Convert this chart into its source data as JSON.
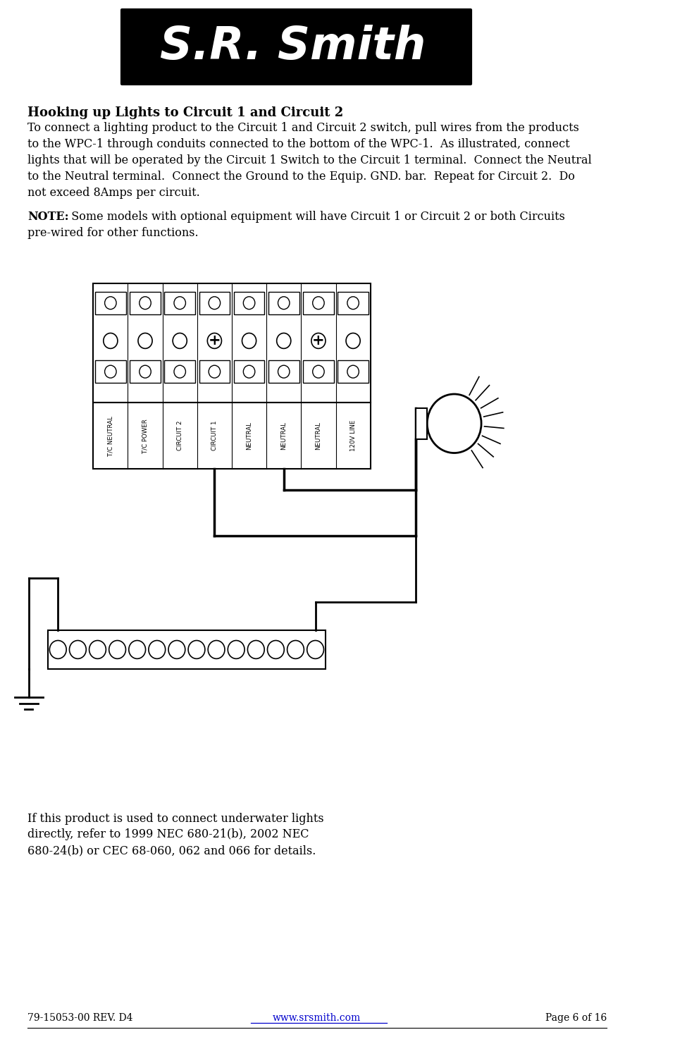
{
  "page_width": 9.75,
  "page_height": 14.71,
  "background_color": "#ffffff",
  "footer_left": "79-15053-00 REV. D4",
  "footer_center": "www.srsmith.com",
  "footer_right": "Page 6 of 16",
  "heading": "Hooking up Lights to Circuit 1 and Circuit 2",
  "para1_lines": [
    "To connect a lighting product to the Circuit 1 and Circuit 2 switch, pull wires from the products",
    "to the WPC-1 through conduits connected to the bottom of the WPC-1.  As illustrated, connect",
    "lights that will be operated by the Circuit 1 Switch to the Circuit 1 terminal.  Connect the Neutral",
    "to the Neutral terminal.  Connect the Ground to the Equip. GND. bar.  Repeat for Circuit 2.  Do",
    "not exceed 8Amps per circuit."
  ],
  "note_bold": "NOTE:",
  "note_line1": "  Some models with optional equipment will have Circuit 1 or Circuit 2 or both Circuits",
  "note_line2": "pre-wired for other functions.",
  "footnote_lines": [
    "If this product is used to connect underwater lights",
    "directly, refer to 1999 NEC 680-21(b), 2002 NEC",
    "680-24(b) or CEC 68-060, 062 and 066 for details."
  ],
  "terminal_labels": [
    "T/C NEUTRAL",
    "T/C POWER",
    "CIRCUIT 2",
    "CIRCUIT 1",
    "NEUTRAL",
    "NEUTRAL",
    "NEUTRAL",
    "120V LINE"
  ],
  "text_color": "#000000",
  "link_color": "#0000cc"
}
